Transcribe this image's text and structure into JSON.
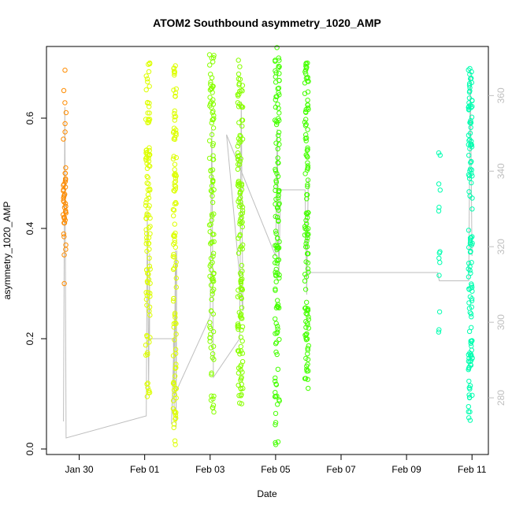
{
  "chart_data": {
    "type": "scatter",
    "title": "ATOM2 Southbound asymmetry_1020_AMP",
    "xlabel": "Date",
    "ylabel": "asymmetry_1020_AMP",
    "x_ticks": [
      "Jan 30",
      "Feb 01",
      "Feb 03",
      "Feb 05",
      "Feb 07",
      "Feb 09",
      "Feb 11"
    ],
    "x_tick_days": [
      30,
      32,
      34,
      36,
      38,
      40,
      42
    ],
    "xlim_days": [
      29.0,
      42.5
    ],
    "y_ticks": [
      "0.0",
      "0.2",
      "0.4",
      "0.6"
    ],
    "y_tick_values": [
      0.0,
      0.2,
      0.4,
      0.6
    ],
    "ylim": [
      -0.01,
      0.73
    ],
    "y2_ticks": [
      "280",
      "300",
      "320",
      "340",
      "360"
    ],
    "y2_tick_values": [
      280,
      300,
      320,
      340,
      360
    ],
    "y2lim": [
      265,
      373
    ],
    "line_color": "#bebebe",
    "grid": false,
    "series": [
      {
        "color": "#FF8C00",
        "clusters": [
          {
            "x_center": 29.55,
            "x_spread": 0.05,
            "count": 45,
            "y": [
              0.687,
              0.65,
              0.628,
              0.61,
              0.59,
              0.575,
              0.562,
              0.51,
              0.5,
              0.49,
              0.485,
              0.48,
              0.475,
              0.47,
              0.462,
              0.455,
              0.45,
              0.445,
              0.44,
              0.432,
              0.425,
              0.42,
              0.415,
              0.41,
              0.39,
              0.385,
              0.37,
              0.362,
              0.352,
              0.3,
              0.488,
              0.478,
              0.468,
              0.458,
              0.448,
              0.438,
              0.428,
              0.418,
              0.5,
              0.47,
              0.46,
              0.44,
              0.43,
              0.42,
              0.41
            ]
          }
        ]
      },
      {
        "color": "#DDFF00",
        "clusters": [
          {
            "x_center": 32.1,
            "x_spread": 0.07,
            "count": 110,
            "y_min": 0.095,
            "y_max": 0.7
          },
          {
            "x_center": 32.92,
            "x_spread": 0.05,
            "count": 110,
            "y_min": 0.008,
            "y_max": 0.695
          }
        ]
      },
      {
        "color": "#88FF00",
        "clusters": [
          {
            "x_center": 34.05,
            "x_spread": 0.07,
            "count": 110,
            "y_min": 0.067,
            "y_max": 0.715
          },
          {
            "x_center": 34.92,
            "x_spread": 0.08,
            "count": 140,
            "y_min": 0.082,
            "y_max": 0.705
          }
        ]
      },
      {
        "color": "#44FF00",
        "clusters": [
          {
            "x_center": 36.05,
            "x_spread": 0.07,
            "count": 130,
            "y_min": 0.008,
            "y_max": 0.728
          },
          {
            "x_center": 36.95,
            "x_spread": 0.06,
            "count": 120,
            "y_min": 0.11,
            "y_max": 0.7
          }
        ]
      },
      {
        "color": "#00FFB0",
        "clusters": [
          {
            "x_center": 41.0,
            "x_spread": 0.03,
            "count": 14,
            "y_min": 0.212,
            "y_max": 0.537
          },
          {
            "x_center": 41.95,
            "x_spread": 0.06,
            "count": 130,
            "y_min": 0.052,
            "y_max": 0.69
          }
        ]
      }
    ],
    "line_path": [
      [
        29.52,
        0.05
      ],
      [
        29.56,
        0.62
      ],
      [
        29.6,
        0.02
      ],
      [
        32.05,
        0.06
      ],
      [
        32.08,
        0.43
      ],
      [
        32.12,
        0.11
      ],
      [
        32.15,
        0.355
      ],
      [
        32.15,
        0.2
      ],
      [
        32.88,
        0.2
      ],
      [
        32.9,
        0.07
      ],
      [
        32.94,
        0.36
      ],
      [
        32.96,
        0.04
      ],
      [
        32.98,
        0.36
      ],
      [
        32.82,
        0.045
      ],
      [
        32.85,
        0.09
      ],
      [
        34.0,
        0.24
      ],
      [
        34.05,
        0.58
      ],
      [
        34.1,
        0.13
      ],
      [
        34.9,
        0.2
      ],
      [
        34.95,
        0.63
      ],
      [
        35.0,
        0.25
      ],
      [
        34.5,
        0.57
      ],
      [
        36.0,
        0.35
      ],
      [
        36.05,
        0.58
      ],
      [
        36.1,
        0.31
      ],
      [
        36.15,
        0.47
      ],
      [
        36.9,
        0.47
      ],
      [
        36.95,
        0.28
      ],
      [
        37.0,
        0.49
      ],
      [
        36.95,
        0.32
      ],
      [
        40.95,
        0.32
      ],
      [
        41.0,
        0.305
      ],
      [
        41.9,
        0.305
      ],
      [
        41.95,
        0.69
      ],
      [
        42.0,
        0.35
      ]
    ]
  }
}
